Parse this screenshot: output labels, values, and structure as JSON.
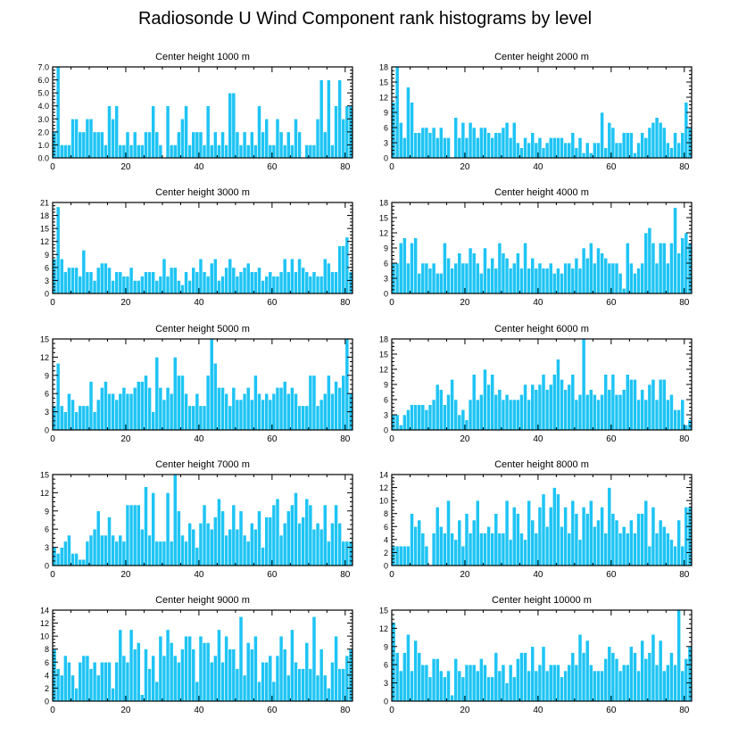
{
  "title": "Radiosonde U Wind Component rank histograms by level",
  "colors": {
    "bar": "#1ec4f4",
    "bar_edge": "#ffffff",
    "axis": "#000000"
  },
  "chart_data": [
    {
      "type": "bar",
      "title": "Center height 1000 m",
      "xlim": [
        0,
        82
      ],
      "xticks": [
        0,
        20,
        40,
        60,
        80
      ],
      "ylim": [
        0,
        7
      ],
      "yticks": [
        0,
        1,
        2,
        3,
        4,
        5,
        6,
        7
      ],
      "ytick_labels": [
        "0.0",
        "1.0",
        "2.0",
        "3.0",
        "4.0",
        "5.0",
        "6.0",
        "7.0"
      ],
      "values": [
        2,
        7,
        1,
        1,
        1,
        3,
        3,
        2,
        2,
        3,
        3,
        2,
        2,
        2,
        1,
        4,
        3,
        4,
        1,
        1,
        2,
        1,
        2,
        1,
        1,
        2,
        2,
        4,
        2,
        1,
        0,
        4,
        1,
        1,
        2,
        3,
        4,
        1,
        2,
        2,
        2,
        1,
        4,
        1,
        2,
        1,
        2,
        1,
        5,
        5,
        2,
        1,
        2,
        1,
        2,
        1,
        4,
        2,
        3,
        1,
        1,
        3,
        2,
        1,
        2,
        1,
        3,
        2,
        0,
        1,
        1,
        1,
        3,
        6,
        2,
        6,
        1,
        4,
        6,
        3,
        4,
        4
      ]
    },
    {
      "type": "bar",
      "title": "Center height 2000 m",
      "xlim": [
        0,
        82
      ],
      "xticks": [
        0,
        20,
        40,
        60,
        80
      ],
      "ylim": [
        0,
        18
      ],
      "yticks": [
        0,
        3,
        6,
        9,
        12,
        15,
        18
      ],
      "values": [
        11,
        18,
        7,
        4,
        14,
        11,
        5,
        5,
        6,
        6,
        5,
        6,
        4,
        6,
        4,
        4,
        0,
        8,
        4,
        7,
        4,
        7,
        6,
        4,
        6,
        6,
        5,
        4,
        5,
        5,
        6,
        7,
        4,
        7,
        3,
        2,
        4,
        3,
        5,
        3,
        4,
        2,
        3,
        4,
        4,
        4,
        4,
        3,
        3,
        5,
        2,
        4,
        1,
        3,
        1,
        3,
        3,
        9,
        2,
        7,
        6,
        3,
        3,
        5,
        5,
        5,
        1,
        3,
        5,
        4,
        6,
        7,
        8,
        7,
        6,
        3,
        2,
        5,
        3,
        5,
        11,
        6
      ]
    },
    {
      "type": "bar",
      "title": "Center height 3000 m",
      "xlim": [
        0,
        82
      ],
      "xticks": [
        0,
        20,
        40,
        60,
        80
      ],
      "ylim": [
        0,
        21
      ],
      "yticks": [
        0,
        3,
        6,
        9,
        12,
        15,
        18,
        21
      ],
      "values": [
        8,
        20,
        8,
        5,
        6,
        6,
        6,
        4,
        10,
        5,
        5,
        3,
        6,
        7,
        7,
        6,
        3,
        5,
        5,
        4,
        4,
        6,
        3,
        3,
        4,
        5,
        5,
        5,
        3,
        4,
        8,
        4,
        6,
        6,
        3,
        2,
        5,
        3,
        6,
        5,
        8,
        5,
        4,
        7,
        8,
        3,
        4,
        6,
        8,
        6,
        4,
        5,
        6,
        7,
        5,
        5,
        6,
        3,
        4,
        5,
        4,
        4,
        5,
        8,
        5,
        8,
        5,
        8,
        6,
        5,
        4,
        5,
        4,
        4,
        8,
        7,
        5,
        5,
        11,
        11,
        13,
        5
      ]
    },
    {
      "type": "bar",
      "title": "Center height 4000 m",
      "xlim": [
        0,
        82
      ],
      "xticks": [
        0,
        20,
        40,
        60,
        80
      ],
      "ylim": [
        0,
        18
      ],
      "yticks": [
        0,
        3,
        6,
        9,
        12,
        15,
        18
      ],
      "values": [
        6,
        6,
        10,
        11,
        6,
        10,
        11,
        4,
        6,
        6,
        5,
        6,
        4,
        4,
        10,
        7,
        5,
        6,
        8,
        6,
        6,
        9,
        8,
        6,
        4,
        9,
        5,
        7,
        5,
        10,
        8,
        7,
        5,
        6,
        8,
        5,
        10,
        5,
        7,
        5,
        6,
        5,
        5,
        6,
        4,
        5,
        4,
        6,
        6,
        5,
        7,
        5,
        9,
        7,
        10,
        6,
        9,
        8,
        7,
        6,
        6,
        6,
        4,
        1,
        10,
        6,
        4,
        5,
        6,
        12,
        13,
        10,
        6,
        10,
        10,
        6,
        10,
        17,
        8,
        11,
        12,
        10
      ]
    },
    {
      "type": "bar",
      "title": "Center height 5000 m",
      "xlim": [
        0,
        82
      ],
      "xticks": [
        0,
        20,
        40,
        60,
        80
      ],
      "ylim": [
        0,
        15
      ],
      "yticks": [
        0,
        3,
        6,
        9,
        12,
        15
      ],
      "values": [
        4,
        11,
        4,
        3,
        6,
        5,
        3,
        4,
        4,
        4,
        8,
        3,
        5,
        7,
        8,
        6,
        6,
        5,
        6,
        7,
        6,
        6,
        7,
        8,
        8,
        9,
        7,
        3,
        12,
        7,
        5,
        7,
        6,
        12,
        9,
        9,
        6,
        4,
        4,
        6,
        4,
        4,
        9,
        15,
        11,
        7,
        7,
        6,
        4,
        7,
        5,
        5,
        6,
        7,
        5,
        9,
        6,
        5,
        6,
        5,
        6,
        7,
        7,
        8,
        6,
        7,
        6,
        4,
        4,
        4,
        9,
        9,
        4,
        5,
        6,
        9,
        6,
        8,
        7,
        9,
        15,
        6
      ]
    },
    {
      "type": "bar",
      "title": "Center height 6000 m",
      "xlim": [
        0,
        82
      ],
      "xticks": [
        0,
        20,
        40,
        60,
        80
      ],
      "ylim": [
        0,
        18
      ],
      "yticks": [
        0,
        3,
        6,
        9,
        12,
        15,
        18
      ],
      "values": [
        3,
        3,
        1,
        3,
        4,
        5,
        5,
        5,
        5,
        4,
        5,
        6,
        9,
        8,
        5,
        7,
        10,
        6,
        3,
        4,
        2,
        6,
        11,
        6,
        7,
        12,
        9,
        11,
        7,
        8,
        6,
        7,
        6,
        6,
        6,
        7,
        9,
        6,
        9,
        8,
        9,
        11,
        8,
        9,
        11,
        14,
        10,
        8,
        9,
        11,
        6,
        7,
        18,
        7,
        8,
        7,
        6,
        7,
        11,
        8,
        11,
        7,
        7,
        8,
        11,
        10,
        10,
        6,
        8,
        6,
        9,
        10,
        6,
        10,
        10,
        6,
        7,
        4,
        4,
        6,
        1,
        2
      ]
    },
    {
      "type": "bar",
      "title": "Center height 7000 m",
      "xlim": [
        0,
        82
      ],
      "xticks": [
        0,
        20,
        40,
        60,
        80
      ],
      "ylim": [
        0,
        15
      ],
      "yticks": [
        0,
        3,
        6,
        9,
        12,
        15
      ],
      "values": [
        3,
        2,
        3,
        4,
        5,
        2,
        2,
        1,
        1,
        4,
        5,
        6,
        9,
        5,
        5,
        8,
        5,
        4,
        5,
        4,
        10,
        10,
        10,
        10,
        6,
        13,
        5,
        12,
        4,
        4,
        4,
        12,
        4,
        15,
        9,
        5,
        4,
        7,
        6,
        3,
        7,
        10,
        7,
        6,
        8,
        11,
        9,
        5,
        6,
        10,
        6,
        9,
        5,
        4,
        7,
        6,
        9,
        3,
        8,
        8,
        10,
        11,
        5,
        7,
        9,
        10,
        12,
        7,
        8,
        11,
        10,
        6,
        7,
        6,
        10,
        4,
        7,
        10,
        7,
        4,
        4,
        4
      ]
    },
    {
      "type": "bar",
      "title": "Center height 8000 m",
      "xlim": [
        0,
        82
      ],
      "xticks": [
        0,
        20,
        40,
        60,
        80
      ],
      "ylim": [
        0,
        14
      ],
      "yticks": [
        0,
        2,
        4,
        6,
        8,
        10,
        12,
        14
      ],
      "values": [
        3,
        3,
        3,
        3,
        3,
        8,
        6,
        7,
        5,
        3,
        0,
        5,
        9,
        6,
        5,
        10,
        5,
        4,
        7,
        3,
        8,
        5,
        7,
        10,
        5,
        5,
        6,
        5,
        8,
        5,
        5,
        10,
        4,
        9,
        8,
        5,
        4,
        10,
        7,
        5,
        9,
        11,
        6,
        9,
        12,
        11,
        6,
        9,
        5,
        10,
        8,
        4,
        9,
        8,
        10,
        6,
        7,
        9,
        5,
        12,
        8,
        7,
        5,
        6,
        5,
        7,
        5,
        8,
        8,
        10,
        3,
        9,
        5,
        7,
        6,
        5,
        4,
        3,
        7,
        3,
        9,
        9
      ]
    },
    {
      "type": "bar",
      "title": "Center height 9000 m",
      "xlim": [
        0,
        82
      ],
      "xticks": [
        0,
        20,
        40,
        60,
        80
      ],
      "ylim": [
        0,
        14
      ],
      "yticks": [
        0,
        2,
        4,
        6,
        8,
        10,
        12,
        14
      ],
      "values": [
        8,
        5,
        4,
        7,
        6,
        4,
        2,
        6,
        7,
        7,
        5,
        6,
        4,
        6,
        6,
        6,
        2,
        6,
        11,
        7,
        6,
        11,
        8,
        9,
        1,
        8,
        5,
        7,
        3,
        10,
        7,
        11,
        9,
        7,
        6,
        8,
        10,
        10,
        8,
        3,
        10,
        9,
        9,
        6,
        7,
        11,
        6,
        10,
        8,
        8,
        5,
        13,
        4,
        9,
        8,
        10,
        3,
        6,
        6,
        7,
        3,
        7,
        10,
        8,
        4,
        11,
        6,
        5,
        5,
        9,
        5,
        13,
        4,
        8,
        4,
        2,
        6,
        10,
        5,
        5,
        7,
        8
      ]
    },
    {
      "type": "bar",
      "title": "Center height 10000 m",
      "xlim": [
        0,
        82
      ],
      "xticks": [
        0,
        20,
        40,
        60,
        80
      ],
      "ylim": [
        0,
        15
      ],
      "yticks": [
        0,
        3,
        6,
        9,
        12,
        15
      ],
      "values": [
        13,
        8,
        5,
        8,
        11,
        5,
        10,
        8,
        6,
        6,
        4,
        7,
        7,
        5,
        4,
        5,
        1,
        7,
        5,
        4,
        6,
        6,
        6,
        5,
        7,
        6,
        4,
        4,
        8,
        5,
        6,
        3,
        6,
        4,
        7,
        8,
        8,
        5,
        9,
        5,
        6,
        9,
        5,
        6,
        6,
        6,
        4,
        5,
        6,
        8,
        6,
        11,
        8,
        10,
        6,
        5,
        5,
        5,
        7,
        9,
        8,
        7,
        5,
        6,
        6,
        9,
        8,
        5,
        10,
        7,
        8,
        11,
        6,
        10,
        5,
        6,
        8,
        6,
        15,
        5,
        7,
        9
      ]
    }
  ]
}
